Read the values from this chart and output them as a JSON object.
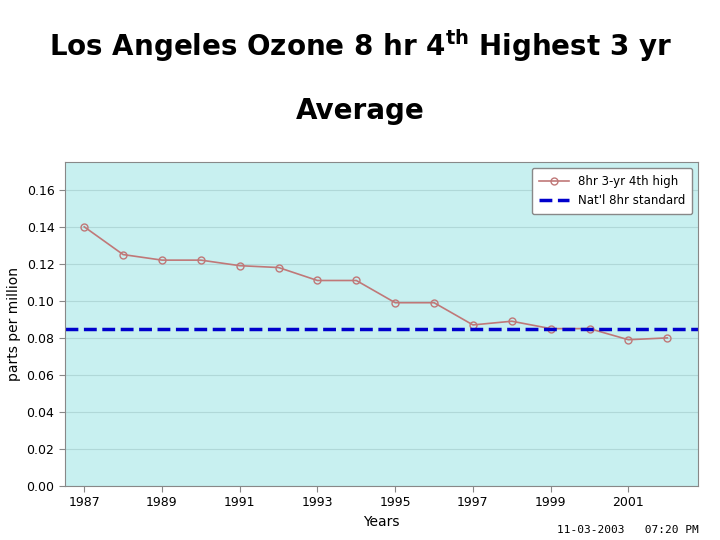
{
  "years": [
    1987,
    1988,
    1989,
    1990,
    1991,
    1992,
    1993,
    1994,
    1995,
    1996,
    1997,
    1998,
    1999,
    2000,
    2001,
    2002
  ],
  "ozone_values": [
    0.14,
    0.125,
    0.122,
    0.122,
    0.119,
    0.118,
    0.111,
    0.111,
    0.099,
    0.099,
    0.087,
    0.089,
    0.085,
    0.085,
    0.079,
    0.08
  ],
  "standard_value": 0.085,
  "ylabel": "parts per million",
  "xlabel": "Years",
  "ylim": [
    0.0,
    0.175
  ],
  "yticks": [
    0.0,
    0.02,
    0.04,
    0.06,
    0.08,
    0.1,
    0.12,
    0.14,
    0.16
  ],
  "xlim": [
    1986.5,
    2002.8
  ],
  "xticks": [
    1987,
    1989,
    1991,
    1993,
    1995,
    1997,
    1999,
    2001
  ],
  "line_color": "#c07878",
  "marker_color": "#c07878",
  "standard_color": "#0000cc",
  "plot_bg_color": "#c8f0f0",
  "outer_bg_color": "#ffffff",
  "legend_label_data": "8hr 3-yr 4th high",
  "legend_label_standard": "Nat'l 8hr standard",
  "timestamp": "11-03-2003   07:20 PM",
  "title_fontsize": 20,
  "tick_fontsize": 9,
  "label_fontsize": 10
}
